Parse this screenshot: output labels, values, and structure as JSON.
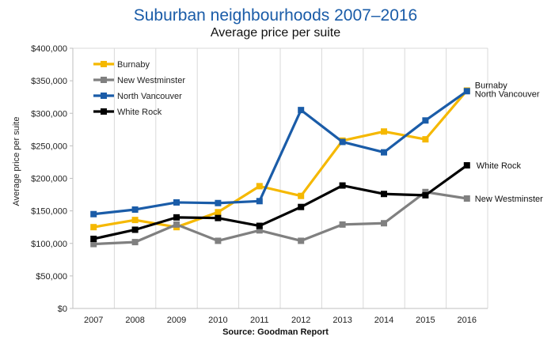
{
  "title": "Suburban neighbourhoods 2007–2016",
  "subtitle": "Average price per suite",
  "source": "Source: Goodman Report",
  "chart_data": {
    "type": "line",
    "x": [
      "2007",
      "2008",
      "2009",
      "2010",
      "2011",
      "2012",
      "2013",
      "2014",
      "2015",
      "2016"
    ],
    "ylabel": "Average price per suite",
    "ylim": [
      0,
      400000
    ],
    "yticks": [
      0,
      50000,
      100000,
      150000,
      200000,
      250000,
      300000,
      350000,
      400000
    ],
    "ytick_labels": [
      "$0",
      "$50,000",
      "$100,000",
      "$150,000",
      "$200,000",
      "$250,000",
      "$300,000",
      "$350,000",
      "$400,000"
    ],
    "grid": "vertical",
    "legend_position": "top-left",
    "series": [
      {
        "name": "Burnaby",
        "color": "#f5b800",
        "end_label": "Burnaby",
        "values": [
          125000,
          136000,
          125000,
          148000,
          188000,
          173000,
          258000,
          272000,
          260000,
          335000
        ]
      },
      {
        "name": "New Westminster",
        "color": "#808080",
        "end_label": "New Westminster",
        "values": [
          99000,
          102000,
          129000,
          104000,
          120000,
          104000,
          129000,
          131000,
          179000,
          169000
        ]
      },
      {
        "name": "North Vancouver",
        "color": "#1a5ca8",
        "end_label": "North Vancouver",
        "values": [
          145000,
          152000,
          163000,
          162000,
          165000,
          305000,
          256000,
          240000,
          289000,
          334000
        ]
      },
      {
        "name": "White Rock",
        "color": "#000000",
        "end_label": "White Rock",
        "values": [
          107000,
          121000,
          140000,
          139000,
          127000,
          156000,
          189000,
          176000,
          174000,
          220000
        ]
      }
    ]
  }
}
